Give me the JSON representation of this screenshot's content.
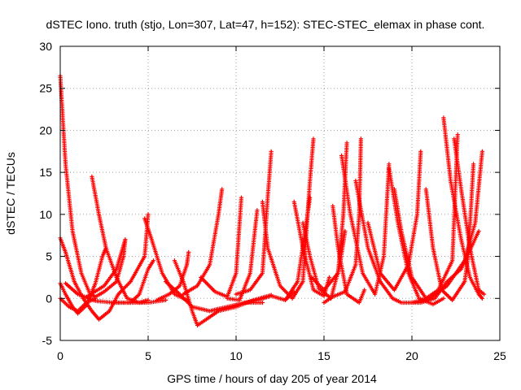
{
  "chart_data": {
    "type": "scatter",
    "title": "dSTEC Iono. truth (stjo, Lon=307, Lat=47, h=152): STEC-STEC_elemax in phase cont.",
    "xlabel": "GPS time / hours of day 205 of year 2014",
    "ylabel": "dSTEC  / TECUs",
    "xlim": [
      0,
      25
    ],
    "ylim": [
      -5,
      30
    ],
    "xticks": [
      "0",
      "5",
      "10",
      "15",
      "20",
      "25"
    ],
    "yticks": [
      "-5",
      "0",
      "5",
      "10",
      "15",
      "20",
      "25",
      "30"
    ],
    "grid": true,
    "marker": "plus",
    "color": "#ff0000",
    "series": [
      {
        "points": [
          [
            0.0,
            26.5
          ],
          [
            0.3,
            16
          ],
          [
            0.7,
            8
          ],
          [
            1.2,
            3
          ],
          [
            1.7,
            0.5
          ],
          [
            2.0,
            0.2
          ],
          [
            2.5,
            0.8
          ],
          [
            3.2,
            2
          ],
          [
            3.6,
            5
          ],
          [
            3.7,
            7
          ]
        ]
      },
      {
        "points": [
          [
            0.0,
            7.2
          ],
          [
            0.3,
            5.5
          ],
          [
            0.8,
            2
          ],
          [
            1.3,
            0
          ],
          [
            1.8,
            -1.5
          ],
          [
            2.2,
            -2.5
          ],
          [
            2.8,
            -1.5
          ],
          [
            3.3,
            0.5
          ],
          [
            4.0,
            2
          ],
          [
            4.8,
            5
          ],
          [
            5.0,
            10
          ]
        ]
      },
      {
        "points": [
          [
            0.0,
            1.8
          ],
          [
            0.3,
            0.5
          ],
          [
            0.7,
            -1
          ],
          [
            1.0,
            -1.8
          ],
          [
            1.5,
            -0.8
          ],
          [
            2.0,
            1.8
          ],
          [
            2.4,
            5
          ],
          [
            2.6,
            6
          ]
        ]
      },
      {
        "points": [
          [
            1.8,
            14.5
          ],
          [
            2.2,
            10
          ],
          [
            2.6,
            6
          ],
          [
            3.2,
            2.5
          ],
          [
            3.8,
            0
          ],
          [
            4.5,
            -0.5
          ],
          [
            5.0,
            -0.2
          ]
        ]
      },
      {
        "points": [
          [
            0.0,
            0
          ],
          [
            0.5,
            -1
          ],
          [
            1.0,
            -1.5
          ],
          [
            1.5,
            -0.5
          ],
          [
            2.0,
            0
          ]
        ]
      },
      {
        "points": [
          [
            3.2,
            -0.5
          ],
          [
            4.0,
            -0.5
          ],
          [
            4.5,
            0.5
          ],
          [
            5.0,
            3.5
          ],
          [
            5.3,
            4.5
          ]
        ]
      },
      {
        "points": [
          [
            4.8,
            9.5
          ],
          [
            5.2,
            7
          ],
          [
            5.8,
            3
          ],
          [
            6.5,
            0.5
          ],
          [
            7.2,
            -0.2
          ]
        ]
      },
      {
        "points": [
          [
            5.5,
            -0.2
          ],
          [
            6.2,
            0.5
          ],
          [
            6.8,
            1.5
          ],
          [
            7.2,
            4
          ],
          [
            7.3,
            5.5
          ]
        ]
      },
      {
        "points": [
          [
            6.5,
            4.5
          ],
          [
            7.0,
            2
          ],
          [
            7.5,
            -1.5
          ],
          [
            7.8,
            -3.2
          ],
          [
            8.3,
            -2.5
          ],
          [
            9.0,
            -1.5
          ],
          [
            10.0,
            -1
          ],
          [
            11.0,
            -0.2
          ],
          [
            12.0,
            0.4
          ]
        ]
      },
      {
        "points": [
          [
            7.0,
            0.5
          ],
          [
            7.8,
            1.5
          ],
          [
            8.5,
            4
          ],
          [
            9.0,
            10
          ],
          [
            9.2,
            13
          ]
        ]
      },
      {
        "points": [
          [
            8.0,
            2.5
          ],
          [
            8.8,
            0.8
          ],
          [
            9.5,
            0.2
          ],
          [
            10.0,
            3
          ],
          [
            10.3,
            12
          ]
        ]
      },
      {
        "points": [
          [
            9.5,
            0
          ],
          [
            10.2,
            -0.2
          ],
          [
            10.8,
            3
          ],
          [
            11.2,
            10.5
          ]
        ]
      },
      {
        "points": [
          [
            10.0,
            0.5
          ],
          [
            10.8,
            1
          ],
          [
            11.5,
            3
          ],
          [
            11.8,
            12
          ],
          [
            12.0,
            17.5
          ]
        ]
      },
      {
        "points": [
          [
            10.5,
            -0.5
          ],
          [
            11.2,
            -0.2
          ],
          [
            12.0,
            0.3
          ],
          [
            12.8,
            -0.2
          ],
          [
            13.3,
            0.8
          ]
        ]
      },
      {
        "points": [
          [
            11.5,
            11.5
          ],
          [
            11.8,
            6
          ],
          [
            12.5,
            1.5
          ],
          [
            13.2,
            0
          ],
          [
            13.8,
            2
          ],
          [
            14.2,
            14
          ],
          [
            14.4,
            19
          ]
        ]
      },
      {
        "points": [
          [
            12.8,
            -0.2
          ],
          [
            13.5,
            2
          ],
          [
            14.0,
            9
          ],
          [
            14.2,
            12
          ]
        ]
      },
      {
        "points": [
          [
            13.3,
            11.5
          ],
          [
            13.8,
            6
          ],
          [
            14.4,
            1
          ],
          [
            15.0,
            0.3
          ],
          [
            15.3,
            2.5
          ]
        ]
      },
      {
        "points": [
          [
            13.8,
            9
          ],
          [
            14.2,
            5
          ],
          [
            14.7,
            1.2
          ],
          [
            15.4,
            0
          ],
          [
            15.9,
            4
          ],
          [
            16.2,
            8
          ]
        ]
      },
      {
        "points": [
          [
            14.3,
            2.5
          ],
          [
            15.0,
            1
          ],
          [
            15.8,
            3
          ],
          [
            16.1,
            10
          ],
          [
            16.3,
            18.5
          ]
        ]
      },
      {
        "points": [
          [
            15.5,
            11
          ],
          [
            15.8,
            6
          ],
          [
            16.3,
            0.5
          ],
          [
            17.0,
            -0.5
          ],
          [
            17.3,
            1
          ]
        ]
      },
      {
        "points": [
          [
            15.0,
            -0.5
          ],
          [
            15.5,
            0.2
          ],
          [
            16.2,
            0.8
          ],
          [
            16.8,
            4
          ],
          [
            17.0,
            10
          ],
          [
            17.1,
            19
          ]
        ]
      },
      {
        "points": [
          [
            16.0,
            17
          ],
          [
            16.5,
            10
          ],
          [
            17.2,
            3
          ],
          [
            17.9,
            0.5
          ],
          [
            18.4,
            5
          ],
          [
            18.7,
            16
          ]
        ]
      },
      {
        "points": [
          [
            16.8,
            14
          ],
          [
            17.5,
            6
          ],
          [
            18.2,
            2
          ],
          [
            18.9,
            0
          ],
          [
            19.4,
            -0.5
          ]
        ]
      },
      {
        "points": [
          [
            17.5,
            9
          ],
          [
            18.2,
            3
          ],
          [
            19.0,
            1
          ],
          [
            19.8,
            4
          ],
          [
            20.3,
            10
          ],
          [
            20.5,
            17.5
          ]
        ]
      },
      {
        "points": [
          [
            18.7,
            15.5
          ],
          [
            19.2,
            9
          ],
          [
            19.8,
            3
          ],
          [
            20.4,
            0
          ],
          [
            21.2,
            -0.7
          ],
          [
            21.8,
            0
          ]
        ]
      },
      {
        "points": [
          [
            19.0,
            13
          ],
          [
            19.4,
            8
          ],
          [
            20.0,
            2.5
          ],
          [
            20.8,
            0
          ],
          [
            21.5,
            1
          ],
          [
            22.3,
            4.5
          ],
          [
            22.6,
            19.5
          ]
        ]
      },
      {
        "points": [
          [
            20.8,
            13
          ],
          [
            21.2,
            6
          ],
          [
            21.7,
            1
          ],
          [
            22.3,
            -0.2
          ],
          [
            23.0,
            2
          ],
          [
            23.2,
            5
          ],
          [
            23.5,
            16
          ]
        ]
      },
      {
        "points": [
          [
            21.8,
            21.5
          ],
          [
            22.2,
            14
          ],
          [
            22.8,
            7
          ],
          [
            23.3,
            2.5
          ],
          [
            23.8,
            0.5
          ],
          [
            24.0,
            0
          ]
        ]
      },
      {
        "points": [
          [
            22.4,
            19
          ],
          [
            22.8,
            13
          ],
          [
            23.3,
            6
          ],
          [
            23.8,
            1
          ],
          [
            24.1,
            0.5
          ]
        ]
      },
      {
        "points": [
          [
            20.0,
            -0.5
          ],
          [
            21.0,
            0
          ],
          [
            22.0,
            1.5
          ],
          [
            23.0,
            4.5
          ],
          [
            23.6,
            9
          ],
          [
            24.0,
            17.5
          ]
        ]
      },
      {
        "points": [
          [
            19.5,
            -0.5
          ],
          [
            20.5,
            -0.5
          ],
          [
            21.3,
            0
          ],
          [
            22.0,
            2
          ],
          [
            22.8,
            3.5
          ],
          [
            23.8,
            8
          ]
        ]
      },
      {
        "points": [
          [
            0.3,
            1.8
          ],
          [
            1.0,
            0.5
          ],
          [
            2.0,
            -0.3
          ],
          [
            3.0,
            -0.5
          ],
          [
            4.0,
            -0.5
          ],
          [
            5.0,
            -0.5
          ],
          [
            6.0,
            -0.2
          ]
        ]
      },
      {
        "points": [
          [
            1.5,
            0.2
          ],
          [
            2.5,
            1.5
          ],
          [
            3.2,
            3.5
          ],
          [
            3.7,
            7
          ]
        ]
      },
      {
        "points": [
          [
            6.0,
            2
          ],
          [
            6.8,
            0.5
          ],
          [
            7.5,
            -1
          ],
          [
            8.5,
            -1.5
          ],
          [
            9.5,
            -1
          ],
          [
            10.5,
            -0.5
          ],
          [
            11.5,
            -0.5
          ]
        ]
      }
    ]
  }
}
